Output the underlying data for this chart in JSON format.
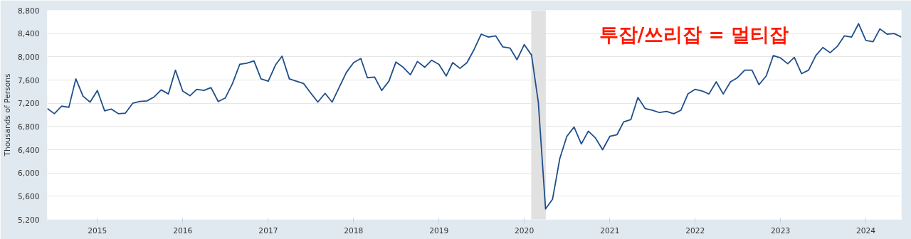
{
  "chart_data": {
    "type": "line",
    "ylabel": "Thousands of Persons",
    "annotations": [
      "투잡/쓰리잡 = 멀티잡"
    ],
    "xlim": [
      "2014-06",
      "2024-06"
    ],
    "xticks": [
      "2015",
      "2016",
      "2017",
      "2018",
      "2019",
      "2020",
      "2021",
      "2022",
      "2023",
      "2024"
    ],
    "ylim": [
      5200,
      8800
    ],
    "yticks": [
      {
        "value": 5200,
        "label": "5,200"
      },
      {
        "value": 5600,
        "label": "5,600"
      },
      {
        "value": 6000,
        "label": "6,000"
      },
      {
        "value": 6400,
        "label": "6,400"
      },
      {
        "value": 6800,
        "label": "6,800"
      },
      {
        "value": 7200,
        "label": "7,200"
      },
      {
        "value": 7600,
        "label": "7,600"
      },
      {
        "value": 8000,
        "label": "8,000"
      },
      {
        "value": 8400,
        "label": "8,400"
      },
      {
        "value": 8800,
        "label": "8,800"
      }
    ],
    "grid": "y",
    "line_style": "solid",
    "marker": "none",
    "bands": [
      {
        "axis": "x",
        "from": "2020-02",
        "to": "2020-04",
        "label": null,
        "color": "#e1e1e1"
      }
    ],
    "x": [
      "2014-06",
      "2014-07",
      "2014-08",
      "2014-09",
      "2014-10",
      "2014-11",
      "2014-12",
      "2015-01",
      "2015-02",
      "2015-03",
      "2015-04",
      "2015-05",
      "2015-06",
      "2015-07",
      "2015-08",
      "2015-09",
      "2015-10",
      "2015-11",
      "2015-12",
      "2016-01",
      "2016-02",
      "2016-03",
      "2016-04",
      "2016-05",
      "2016-06",
      "2016-07",
      "2016-08",
      "2016-09",
      "2016-10",
      "2016-11",
      "2016-12",
      "2017-01",
      "2017-02",
      "2017-03",
      "2017-04",
      "2017-05",
      "2017-06",
      "2017-07",
      "2017-08",
      "2017-09",
      "2017-10",
      "2017-11",
      "2017-12",
      "2018-01",
      "2018-02",
      "2018-03",
      "2018-04",
      "2018-05",
      "2018-06",
      "2018-07",
      "2018-08",
      "2018-09",
      "2018-10",
      "2018-11",
      "2018-12",
      "2019-01",
      "2019-02",
      "2019-03",
      "2019-04",
      "2019-05",
      "2019-06",
      "2019-07",
      "2019-08",
      "2019-09",
      "2019-10",
      "2019-11",
      "2019-12",
      "2020-01",
      "2020-02",
      "2020-03",
      "2020-04",
      "2020-05",
      "2020-06",
      "2020-07",
      "2020-08",
      "2020-09",
      "2020-10",
      "2020-11",
      "2020-12",
      "2021-01",
      "2021-02",
      "2021-03",
      "2021-04",
      "2021-05",
      "2021-06",
      "2021-07",
      "2021-08",
      "2021-09",
      "2021-10",
      "2021-11",
      "2021-12",
      "2022-01",
      "2022-02",
      "2022-03",
      "2022-04",
      "2022-05",
      "2022-06",
      "2022-07",
      "2022-08",
      "2022-09",
      "2022-10",
      "2022-11",
      "2022-12",
      "2023-01",
      "2023-02",
      "2023-03",
      "2023-04",
      "2023-05",
      "2023-06",
      "2023-07",
      "2023-08",
      "2023-09",
      "2023-10",
      "2023-11",
      "2023-12",
      "2024-01",
      "2024-02",
      "2024-03",
      "2024-04",
      "2024-05",
      "2024-06"
    ],
    "series": [
      {
        "color": "#1f4e8a",
        "values": [
          7110,
          7020,
          7150,
          7130,
          7620,
          7320,
          7220,
          7420,
          7070,
          7100,
          7020,
          7030,
          7200,
          7230,
          7240,
          7310,
          7430,
          7360,
          7770,
          7410,
          7330,
          7440,
          7420,
          7470,
          7230,
          7290,
          7540,
          7870,
          7890,
          7930,
          7620,
          7580,
          7860,
          8010,
          7620,
          7580,
          7540,
          7380,
          7220,
          7370,
          7220,
          7480,
          7730,
          7900,
          7970,
          7640,
          7650,
          7420,
          7580,
          7910,
          7820,
          7690,
          7920,
          7820,
          7940,
          7870,
          7670,
          7900,
          7800,
          7900,
          8130,
          8390,
          8340,
          8360,
          8170,
          8150,
          7950,
          8210,
          8030,
          7220,
          5380,
          5550,
          6250,
          6630,
          6790,
          6500,
          6720,
          6600,
          6400,
          6630,
          6660,
          6880,
          6920,
          7300,
          7110,
          7080,
          7040,
          7060,
          7020,
          7080,
          7360,
          7440,
          7410,
          7360,
          7570,
          7360,
          7570,
          7640,
          7770,
          7770,
          7520,
          7670,
          8020,
          7980,
          7880,
          7990,
          7710,
          7770,
          8020,
          8160,
          8070,
          8180,
          8360,
          8340,
          8570,
          8280,
          8260,
          8480,
          8390,
          8400,
          8340
        ]
      }
    ]
  }
}
